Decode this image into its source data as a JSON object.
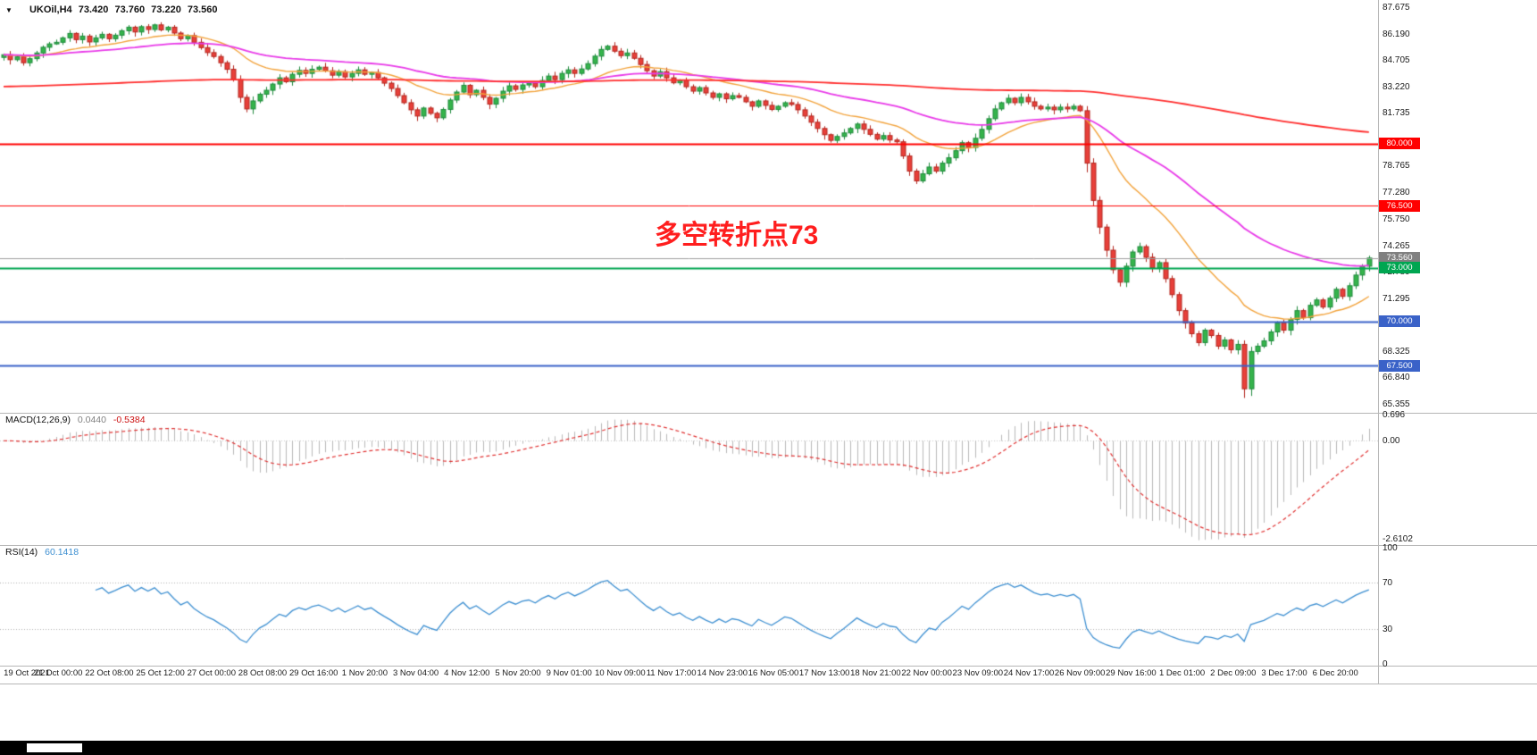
{
  "header": {
    "collapse_arrow": "▼",
    "symbol": "UKOil,H4",
    "open": "73.420",
    "high": "73.760",
    "low": "73.220",
    "close": "73.560"
  },
  "chart_data": [
    {
      "type": "candlestick",
      "symbol": "UKOil",
      "timeframe": "H4",
      "ylim": [
        64.85,
        88.08
      ],
      "up_color": "#35b44b",
      "down_color": "#e8403a",
      "annotation": {
        "text": "多空转折点73",
        "color": "#ff1e1e"
      },
      "y_ticks": [
        "87.675",
        "86.190",
        "84.705",
        "83.220",
        "81.735",
        "78.765",
        "77.280",
        "75.750",
        "74.265",
        "72.780",
        "71.295",
        "69.810",
        "68.325",
        "66.840",
        "65.355"
      ],
      "x_labels": [
        "19 Oct 2021",
        "21 Oct 00:00",
        "22 Oct 08:00",
        "25 Oct 12:00",
        "27 Oct 00:00",
        "28 Oct 08:00",
        "29 Oct 16:00",
        "1 Nov 20:00",
        "3 Nov 04:00",
        "4 Nov 12:00",
        "5 Nov 20:00",
        "9 Nov 01:00",
        "10 Nov 09:00",
        "11 Nov 17:00",
        "14 Nov 23:00",
        "16 Nov 05:00",
        "17 Nov 13:00",
        "18 Nov 21:00",
        "22 Nov 00:00",
        "23 Nov 09:00",
        "24 Nov 17:00",
        "26 Nov 09:00",
        "29 Nov 16:00",
        "1 Dec 01:00",
        "2 Dec 09:00",
        "3 Dec 17:00",
        "6 Dec 20:00"
      ],
      "horizontal_lines": [
        {
          "label": "80.000",
          "price": 80.0,
          "color": "#ff0000",
          "badge_bg": "#ff0000",
          "line_width": 2,
          "kind": "resistance"
        },
        {
          "label": "76.500",
          "price": 76.5,
          "color": "#ff0000",
          "badge_bg": "#ff0000",
          "line_width": 1,
          "kind": "resistance"
        },
        {
          "label": "73.560",
          "price": 73.56,
          "color": "#9e9e9e",
          "badge_bg": "#808080",
          "line_width": 1,
          "kind": "current-price"
        },
        {
          "label": "73.000",
          "price": 73.0,
          "color": "#00a651",
          "badge_bg": "#00a651",
          "line_width": 2,
          "kind": "pivot"
        },
        {
          "label": "70.000",
          "price": 70.0,
          "color": "#3a62c8",
          "badge_bg": "#3a62c8",
          "line_width": 2,
          "kind": "support"
        },
        {
          "label": "67.500",
          "price": 67.5,
          "color": "#3a62c8",
          "badge_bg": "#3a62c8",
          "line_width": 2,
          "kind": "support"
        }
      ],
      "moving_averages": [
        {
          "name": "fast",
          "period": 20,
          "color": "#f2a33c",
          "width": 1.4
        },
        {
          "name": "medium",
          "period": 55,
          "color": "#e83ae8",
          "width": 1.8
        },
        {
          "name": "slow",
          "period": 400,
          "seed": 83.2,
          "color": "#ff2d2d",
          "width": 1.8
        }
      ],
      "closes": [
        85.0,
        84.72,
        84.88,
        84.55,
        84.78,
        85.1,
        85.42,
        85.61,
        85.7,
        85.95,
        86.2,
        85.85,
        86.05,
        85.72,
        85.95,
        86.15,
        85.9,
        86.1,
        86.35,
        86.55,
        86.28,
        86.58,
        86.42,
        86.68,
        86.4,
        86.55,
        86.22,
        85.9,
        86.08,
        85.7,
        85.4,
        85.12,
        84.9,
        84.55,
        84.18,
        83.6,
        82.6,
        81.95,
        82.4,
        82.78,
        83.0,
        83.35,
        83.7,
        83.48,
        83.9,
        84.12,
        83.95,
        84.18,
        84.3,
        84.1,
        83.85,
        84.05,
        83.75,
        83.95,
        84.15,
        83.9,
        84.0,
        83.7,
        83.4,
        83.1,
        82.7,
        82.3,
        81.9,
        81.55,
        82.0,
        81.7,
        81.45,
        81.92,
        82.45,
        82.9,
        83.28,
        82.75,
        83.0,
        82.6,
        82.22,
        82.55,
        82.95,
        83.25,
        83.05,
        83.3,
        83.4,
        83.2,
        83.55,
        83.8,
        83.6,
        83.95,
        84.15,
        83.95,
        84.2,
        84.5,
        84.92,
        85.3,
        85.48,
        85.2,
        84.95,
        85.1,
        84.8,
        84.45,
        84.1,
        83.8,
        84.05,
        83.7,
        83.42,
        83.55,
        83.2,
        82.95,
        83.15,
        82.85,
        82.6,
        82.8,
        82.52,
        82.7,
        82.6,
        82.35,
        82.1,
        82.4,
        82.15,
        81.92,
        82.1,
        82.3,
        82.2,
        81.9,
        81.55,
        81.2,
        80.85,
        80.5,
        80.18,
        80.4,
        80.6,
        80.85,
        81.1,
        80.8,
        80.52,
        80.25,
        80.45,
        80.2,
        80.1,
        79.3,
        78.45,
        77.9,
        78.3,
        78.68,
        78.45,
        78.9,
        79.2,
        79.6,
        80.05,
        79.78,
        80.3,
        80.8,
        81.4,
        81.95,
        82.3,
        82.55,
        82.3,
        82.6,
        82.35,
        82.1,
        81.95,
        82.05,
        81.9,
        82.05,
        81.95,
        82.1,
        81.85,
        78.9,
        76.8,
        75.3,
        74.0,
        72.9,
        72.2,
        73.1,
        73.9,
        74.2,
        73.6,
        73.0,
        73.3,
        72.4,
        71.5,
        70.6,
        69.9,
        69.3,
        68.8,
        69.5,
        69.2,
        68.6,
        68.95,
        68.4,
        68.7,
        66.2,
        68.3,
        68.6,
        68.9,
        69.4,
        69.9,
        69.5,
        70.1,
        70.6,
        70.2,
        70.9,
        71.2,
        70.8,
        71.3,
        71.8,
        71.4,
        72.0,
        72.6,
        73.1,
        73.56
      ]
    },
    {
      "type": "macd_histogram",
      "label": "MACD(12,26,9)",
      "params": [
        12,
        26,
        9
      ],
      "current_main": "0.0440",
      "current_signal": "-0.5384",
      "y_ticks": [
        "0.696",
        "0.00",
        "-2.6102"
      ],
      "ylim": [
        -2.78,
        0.72
      ],
      "histogram_color": "#b8b8b8",
      "signal_color": "#e03030"
    },
    {
      "type": "rsi_line",
      "label": "RSI(14)",
      "period": 14,
      "current_value": "60.1418",
      "y_ticks": [
        "100",
        "70",
        "30",
        "0"
      ],
      "levels": [
        70,
        30
      ],
      "ylim": [
        0,
        100
      ],
      "line_color": "#3d8fd1"
    }
  ]
}
